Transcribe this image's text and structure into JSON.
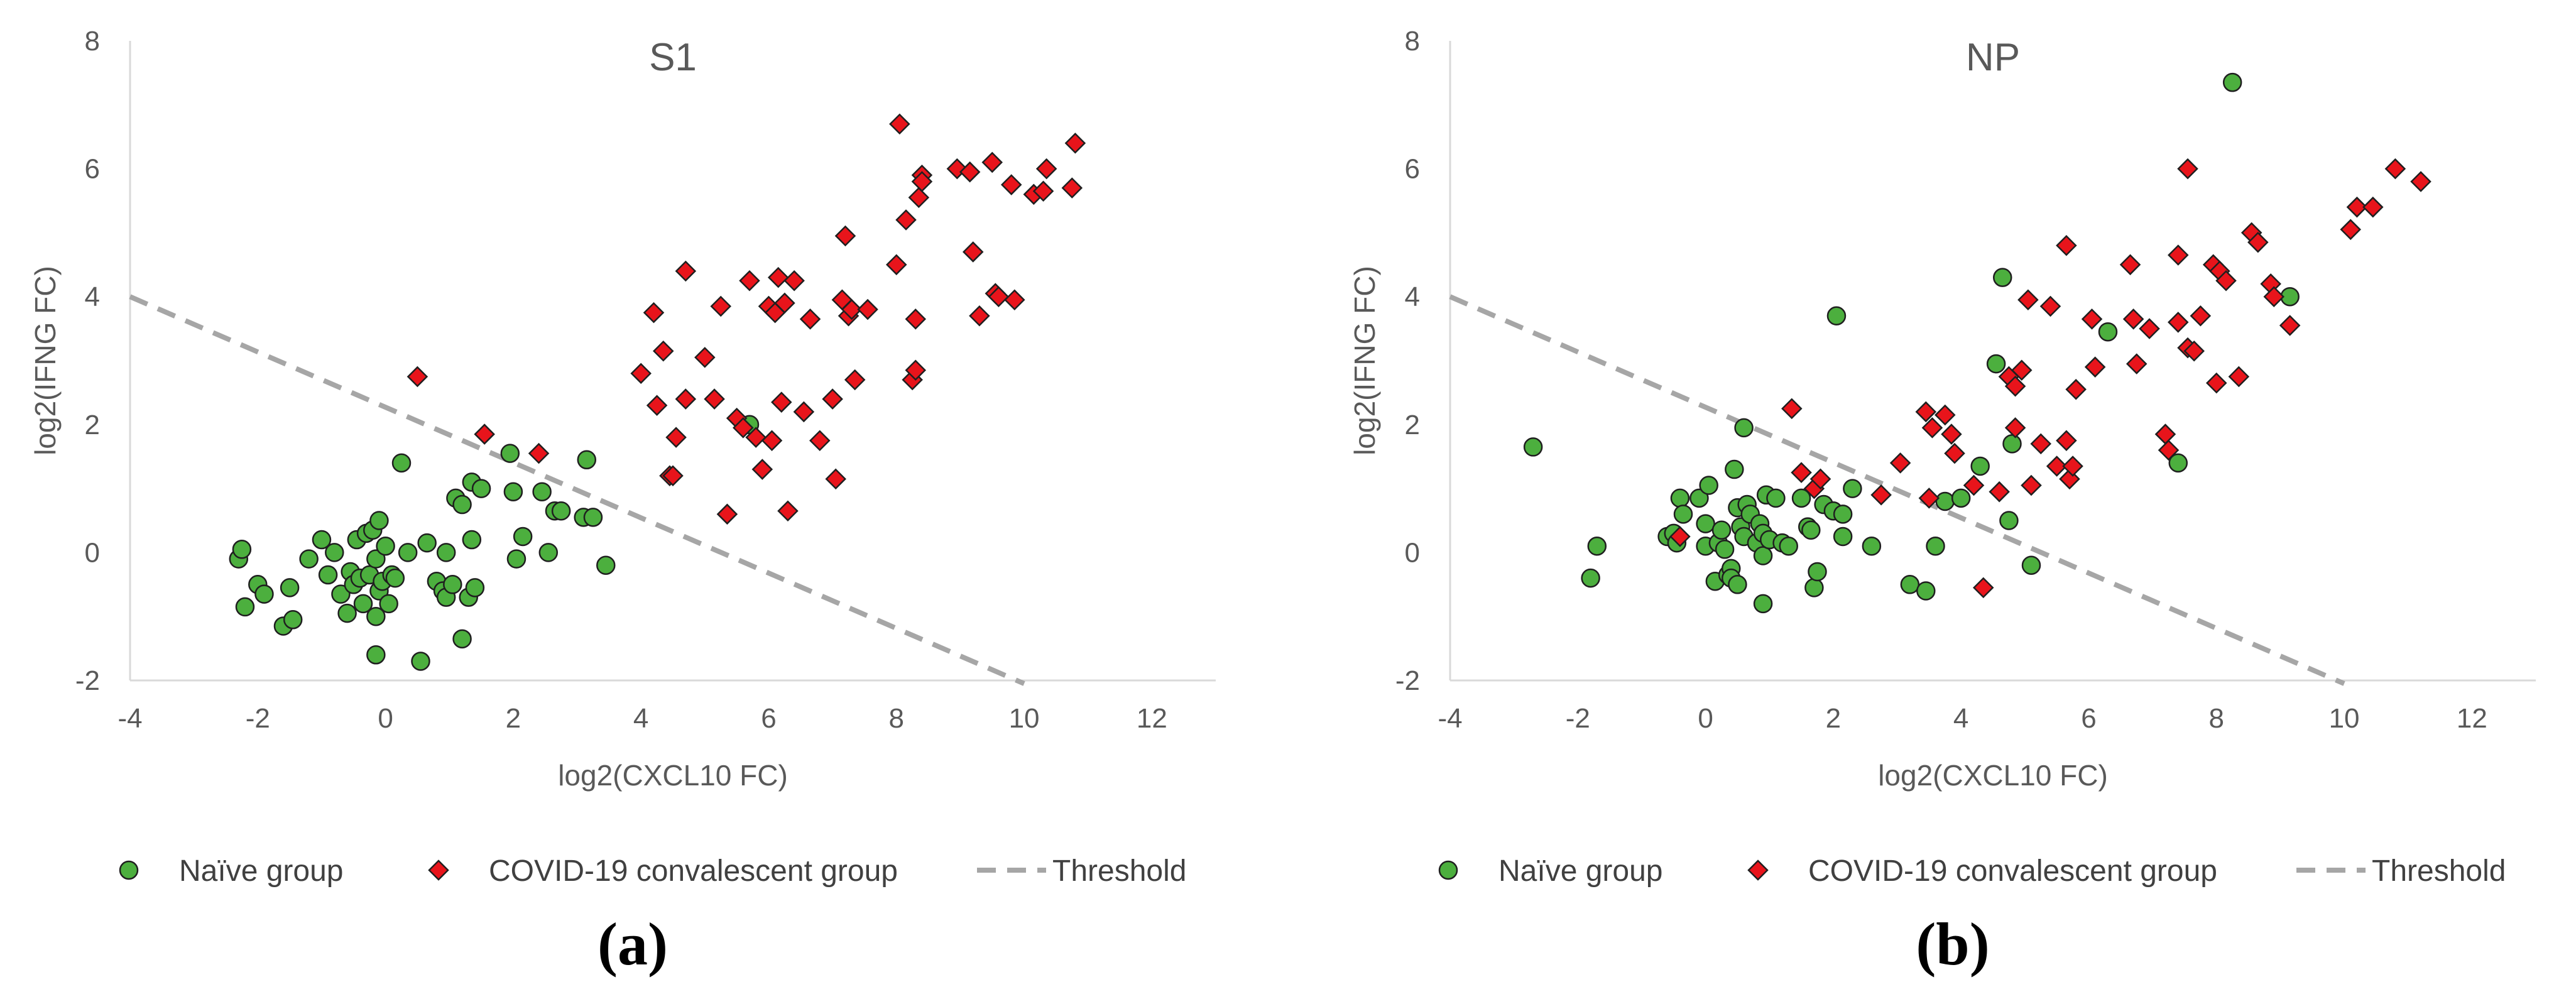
{
  "chart_data": [
    {
      "type": "scatter",
      "title": "S1",
      "xlabel": "log2(CXCL10 FC)",
      "ylabel": "log2(IFNG FC)",
      "xlim": [
        -4,
        13
      ],
      "ylim": [
        -2,
        8
      ],
      "xticks": [
        -4,
        -2,
        0,
        2,
        4,
        6,
        8,
        10,
        12
      ],
      "yticks": [
        -2,
        0,
        2,
        4,
        6,
        8
      ],
      "panel_label": "(a)",
      "legend": [
        "Naïve group",
        "COVID-19 convalescent group",
        "Threshold"
      ],
      "colors": {
        "naive": "#4CAF3E",
        "covid": "#E8141B",
        "threshold": "#A6A6A6"
      },
      "threshold": {
        "x": [
          -4,
          10
        ],
        "y": [
          4,
          -2.05
        ]
      },
      "series": [
        {
          "name": "Naïve group",
          "marker": "circle",
          "points": [
            [
              -2.3,
              -0.1
            ],
            [
              -2.25,
              0.05
            ],
            [
              -2.2,
              -0.85
            ],
            [
              -2.0,
              -0.5
            ],
            [
              -1.9,
              -0.65
            ],
            [
              -1.6,
              -1.15
            ],
            [
              -1.5,
              -0.55
            ],
            [
              -1.45,
              -1.05
            ],
            [
              -1.2,
              -0.1
            ],
            [
              -1.0,
              0.2
            ],
            [
              -0.9,
              -0.35
            ],
            [
              -0.8,
              0.0
            ],
            [
              -0.7,
              -0.65
            ],
            [
              -0.6,
              -0.95
            ],
            [
              -0.55,
              -0.3
            ],
            [
              -0.5,
              -0.5
            ],
            [
              -0.45,
              0.2
            ],
            [
              -0.4,
              -0.4
            ],
            [
              -0.35,
              -0.8
            ],
            [
              -0.3,
              0.3
            ],
            [
              -0.25,
              -0.35
            ],
            [
              -0.2,
              0.35
            ],
            [
              -0.15,
              -0.1
            ],
            [
              -0.1,
              0.5
            ],
            [
              -0.1,
              -0.6
            ],
            [
              -0.15,
              -1.0
            ],
            [
              -0.15,
              -1.6
            ],
            [
              -0.05,
              -0.45
            ],
            [
              0.0,
              0.1
            ],
            [
              0.05,
              -0.8
            ],
            [
              0.1,
              -0.35
            ],
            [
              0.15,
              -0.4
            ],
            [
              0.25,
              1.4
            ],
            [
              0.35,
              0.0
            ],
            [
              0.55,
              -1.7
            ],
            [
              0.65,
              0.15
            ],
            [
              0.8,
              -0.45
            ],
            [
              0.9,
              -0.6
            ],
            [
              0.95,
              -0.7
            ],
            [
              0.95,
              0.0
            ],
            [
              1.05,
              -0.5
            ],
            [
              1.1,
              0.85
            ],
            [
              1.2,
              0.75
            ],
            [
              1.2,
              -1.35
            ],
            [
              1.3,
              -0.7
            ],
            [
              1.35,
              1.1
            ],
            [
              1.35,
              0.2
            ],
            [
              1.4,
              -0.55
            ],
            [
              1.5,
              1.0
            ],
            [
              1.95,
              1.55
            ],
            [
              2.0,
              0.95
            ],
            [
              2.05,
              -0.1
            ],
            [
              2.15,
              0.25
            ],
            [
              2.45,
              0.95
            ],
            [
              2.55,
              0.0
            ],
            [
              2.65,
              0.65
            ],
            [
              2.75,
              0.65
            ],
            [
              3.1,
              0.55
            ],
            [
              3.15,
              1.45
            ],
            [
              3.25,
              0.55
            ],
            [
              3.45,
              -0.2
            ],
            [
              5.7,
              2.0
            ]
          ]
        },
        {
          "name": "COVID-19 convalescent group",
          "marker": "diamond",
          "points": [
            [
              0.5,
              2.75
            ],
            [
              1.55,
              1.85
            ],
            [
              2.4,
              1.55
            ],
            [
              4.0,
              2.8
            ],
            [
              4.2,
              3.75
            ],
            [
              4.25,
              2.3
            ],
            [
              4.35,
              3.15
            ],
            [
              4.45,
              1.2
            ],
            [
              4.5,
              1.2
            ],
            [
              4.55,
              1.8
            ],
            [
              4.7,
              2.4
            ],
            [
              4.7,
              4.4
            ],
            [
              5.0,
              3.05
            ],
            [
              5.15,
              2.4
            ],
            [
              5.25,
              3.85
            ],
            [
              5.35,
              0.6
            ],
            [
              5.5,
              2.1
            ],
            [
              5.6,
              1.95
            ],
            [
              5.7,
              4.25
            ],
            [
              5.8,
              1.8
            ],
            [
              5.9,
              1.3
            ],
            [
              6.0,
              3.85
            ],
            [
              6.05,
              1.75
            ],
            [
              6.1,
              3.75
            ],
            [
              6.15,
              4.3
            ],
            [
              6.2,
              2.35
            ],
            [
              6.25,
              3.9
            ],
            [
              6.3,
              0.65
            ],
            [
              6.4,
              4.25
            ],
            [
              6.55,
              2.2
            ],
            [
              6.65,
              3.65
            ],
            [
              6.8,
              1.75
            ],
            [
              7.0,
              2.4
            ],
            [
              7.05,
              1.15
            ],
            [
              7.15,
              3.95
            ],
            [
              7.2,
              4.95
            ],
            [
              7.25,
              3.7
            ],
            [
              7.3,
              3.8
            ],
            [
              7.35,
              2.7
            ],
            [
              7.55,
              3.8
            ],
            [
              8.0,
              4.5
            ],
            [
              8.05,
              6.7
            ],
            [
              8.15,
              5.2
            ],
            [
              8.25,
              2.7
            ],
            [
              8.3,
              2.85
            ],
            [
              8.3,
              3.65
            ],
            [
              8.35,
              5.55
            ],
            [
              8.4,
              5.9
            ],
            [
              8.4,
              5.8
            ],
            [
              8.95,
              6.0
            ],
            [
              9.15,
              5.95
            ],
            [
              9.2,
              4.7
            ],
            [
              9.3,
              3.7
            ],
            [
              9.5,
              6.1
            ],
            [
              9.55,
              4.05
            ],
            [
              9.6,
              4.0
            ],
            [
              9.8,
              5.75
            ],
            [
              9.85,
              3.95
            ],
            [
              10.15,
              5.6
            ],
            [
              10.3,
              5.65
            ],
            [
              10.35,
              6.0
            ],
            [
              10.75,
              5.7
            ],
            [
              10.8,
              6.4
            ]
          ]
        }
      ]
    },
    {
      "type": "scatter",
      "title": "NP",
      "xlabel": "log2(CXCL10 FC)",
      "ylabel": "log2(IFNG FC)",
      "xlim": [
        -4,
        13
      ],
      "ylim": [
        -2,
        8
      ],
      "xticks": [
        -4,
        -2,
        0,
        2,
        4,
        6,
        8,
        10,
        12
      ],
      "yticks": [
        -2,
        0,
        2,
        4,
        6,
        8
      ],
      "panel_label": "(b)",
      "legend": [
        "Naïve group",
        "COVID-19 convalescent group",
        "Threshold"
      ],
      "colors": {
        "naive": "#4CAF3E",
        "covid": "#E8141B",
        "threshold": "#A6A6A6"
      },
      "threshold": {
        "x": [
          -4,
          10
        ],
        "y": [
          4,
          -2.05
        ]
      },
      "series": [
        {
          "name": "Naïve group",
          "marker": "circle",
          "points": [
            [
              -2.7,
              1.65
            ],
            [
              -1.8,
              -0.4
            ],
            [
              -1.7,
              0.1
            ],
            [
              -0.6,
              0.25
            ],
            [
              -0.5,
              0.3
            ],
            [
              -0.45,
              0.15
            ],
            [
              -0.4,
              0.85
            ],
            [
              -0.35,
              0.6
            ],
            [
              -0.1,
              0.85
            ],
            [
              0.0,
              0.1
            ],
            [
              0.0,
              0.45
            ],
            [
              0.05,
              1.05
            ],
            [
              0.15,
              -0.45
            ],
            [
              0.2,
              0.15
            ],
            [
              0.25,
              0.35
            ],
            [
              0.3,
              0.05
            ],
            [
              0.35,
              -0.35
            ],
            [
              0.4,
              -0.25
            ],
            [
              0.4,
              -0.4
            ],
            [
              0.45,
              1.3
            ],
            [
              0.5,
              -0.5
            ],
            [
              0.5,
              0.7
            ],
            [
              0.55,
              0.4
            ],
            [
              0.6,
              0.25
            ],
            [
              0.6,
              1.95
            ],
            [
              0.65,
              0.75
            ],
            [
              0.7,
              0.6
            ],
            [
              0.8,
              0.15
            ],
            [
              0.85,
              0.45
            ],
            [
              0.9,
              -0.05
            ],
            [
              0.9,
              0.3
            ],
            [
              0.9,
              -0.8
            ],
            [
              0.95,
              0.9
            ],
            [
              1.0,
              0.2
            ],
            [
              1.1,
              0.85
            ],
            [
              1.2,
              0.15
            ],
            [
              1.3,
              0.1
            ],
            [
              1.5,
              0.85
            ],
            [
              1.6,
              0.4
            ],
            [
              1.65,
              0.35
            ],
            [
              1.7,
              -0.55
            ],
            [
              1.75,
              -0.3
            ],
            [
              1.85,
              0.75
            ],
            [
              2.0,
              0.65
            ],
            [
              2.05,
              3.7
            ],
            [
              2.15,
              0.25
            ],
            [
              2.15,
              0.6
            ],
            [
              2.3,
              1.0
            ],
            [
              2.6,
              0.1
            ],
            [
              3.2,
              -0.5
            ],
            [
              3.45,
              -0.6
            ],
            [
              3.6,
              0.1
            ],
            [
              3.75,
              0.8
            ],
            [
              4.0,
              0.85
            ],
            [
              4.3,
              1.35
            ],
            [
              4.55,
              2.95
            ],
            [
              4.65,
              4.3
            ],
            [
              4.75,
              0.5
            ],
            [
              4.8,
              1.7
            ],
            [
              5.1,
              -0.2
            ],
            [
              6.3,
              3.45
            ],
            [
              7.4,
              1.4
            ],
            [
              8.25,
              7.35
            ],
            [
              9.15,
              4.0
            ]
          ]
        },
        {
          "name": "COVID-19 convalescent group",
          "marker": "diamond",
          "points": [
            [
              -0.4,
              0.25
            ],
            [
              1.35,
              2.25
            ],
            [
              1.5,
              1.25
            ],
            [
              1.7,
              1.0
            ],
            [
              1.8,
              1.15
            ],
            [
              2.75,
              0.9
            ],
            [
              3.05,
              1.4
            ],
            [
              3.45,
              2.2
            ],
            [
              3.5,
              0.85
            ],
            [
              3.55,
              1.95
            ],
            [
              3.75,
              2.15
            ],
            [
              3.85,
              1.85
            ],
            [
              3.9,
              1.55
            ],
            [
              4.2,
              1.05
            ],
            [
              4.35,
              -0.55
            ],
            [
              4.6,
              0.95
            ],
            [
              4.75,
              2.75
            ],
            [
              4.85,
              2.6
            ],
            [
              4.85,
              1.95
            ],
            [
              4.95,
              2.85
            ],
            [
              5.05,
              3.95
            ],
            [
              5.1,
              1.05
            ],
            [
              5.25,
              1.7
            ],
            [
              5.4,
              3.85
            ],
            [
              5.5,
              1.35
            ],
            [
              5.65,
              4.8
            ],
            [
              5.65,
              1.75
            ],
            [
              5.7,
              1.15
            ],
            [
              5.75,
              1.35
            ],
            [
              5.8,
              2.55
            ],
            [
              6.05,
              3.65
            ],
            [
              6.1,
              2.9
            ],
            [
              6.65,
              4.5
            ],
            [
              6.7,
              3.65
            ],
            [
              6.75,
              2.95
            ],
            [
              6.95,
              3.5
            ],
            [
              7.2,
              1.85
            ],
            [
              7.25,
              1.6
            ],
            [
              7.4,
              4.65
            ],
            [
              7.4,
              3.6
            ],
            [
              7.55,
              6.0
            ],
            [
              7.55,
              3.2
            ],
            [
              7.65,
              3.15
            ],
            [
              7.75,
              3.7
            ],
            [
              7.95,
              4.5
            ],
            [
              8.0,
              2.65
            ],
            [
              8.05,
              4.4
            ],
            [
              8.15,
              4.25
            ],
            [
              8.35,
              2.75
            ],
            [
              8.55,
              5.0
            ],
            [
              8.65,
              4.85
            ],
            [
              8.85,
              4.2
            ],
            [
              8.9,
              4.0
            ],
            [
              9.15,
              3.55
            ],
            [
              10.1,
              5.05
            ],
            [
              10.2,
              5.4
            ],
            [
              10.45,
              5.4
            ],
            [
              10.8,
              6.0
            ],
            [
              11.2,
              5.8
            ]
          ]
        }
      ]
    }
  ]
}
